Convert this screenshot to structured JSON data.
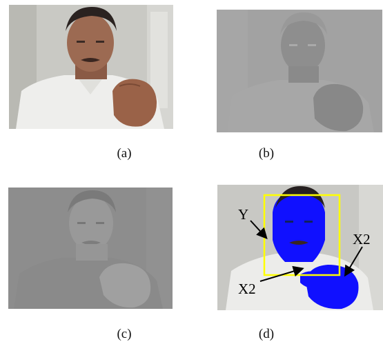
{
  "figure": {
    "captions": {
      "a": "(a)",
      "b": "(b)",
      "c": "(c)",
      "d": "(d)"
    },
    "annotations": {
      "face_label": "Y",
      "hand_label_top": "X2",
      "hand_label_bottom": "X2"
    },
    "colors": {
      "skin_mask": "#1010ff",
      "face_box": "#ffff00",
      "gray_b": "#a2a2a2",
      "gray_c": "#8d8d8d"
    }
  }
}
